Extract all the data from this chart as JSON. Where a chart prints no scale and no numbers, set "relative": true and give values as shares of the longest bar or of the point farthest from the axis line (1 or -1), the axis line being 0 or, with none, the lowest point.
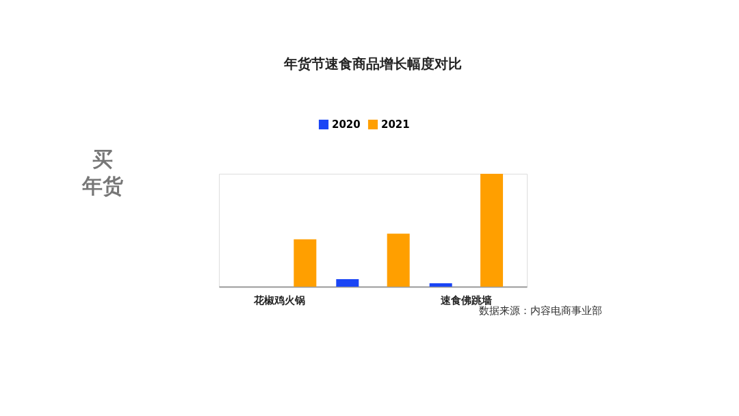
{
  "chart_data": {
    "type": "bar",
    "title": "年货节速食商品增长幅度对比",
    "categories": [
      "花椒鸡火锅",
      null,
      "速食佛跳墙"
    ],
    "relative": true,
    "legend": "top",
    "series": [
      {
        "name": "2020",
        "color": "#1a45f5",
        "values": [
          0,
          0.067,
          0.03
        ]
      },
      {
        "name": "2021",
        "color": "#ff9f00",
        "values": [
          0.42,
          0.47,
          1
        ]
      }
    ],
    "annotations": [
      "买年货",
      "数据来源：内容电商事业部"
    ]
  }
}
